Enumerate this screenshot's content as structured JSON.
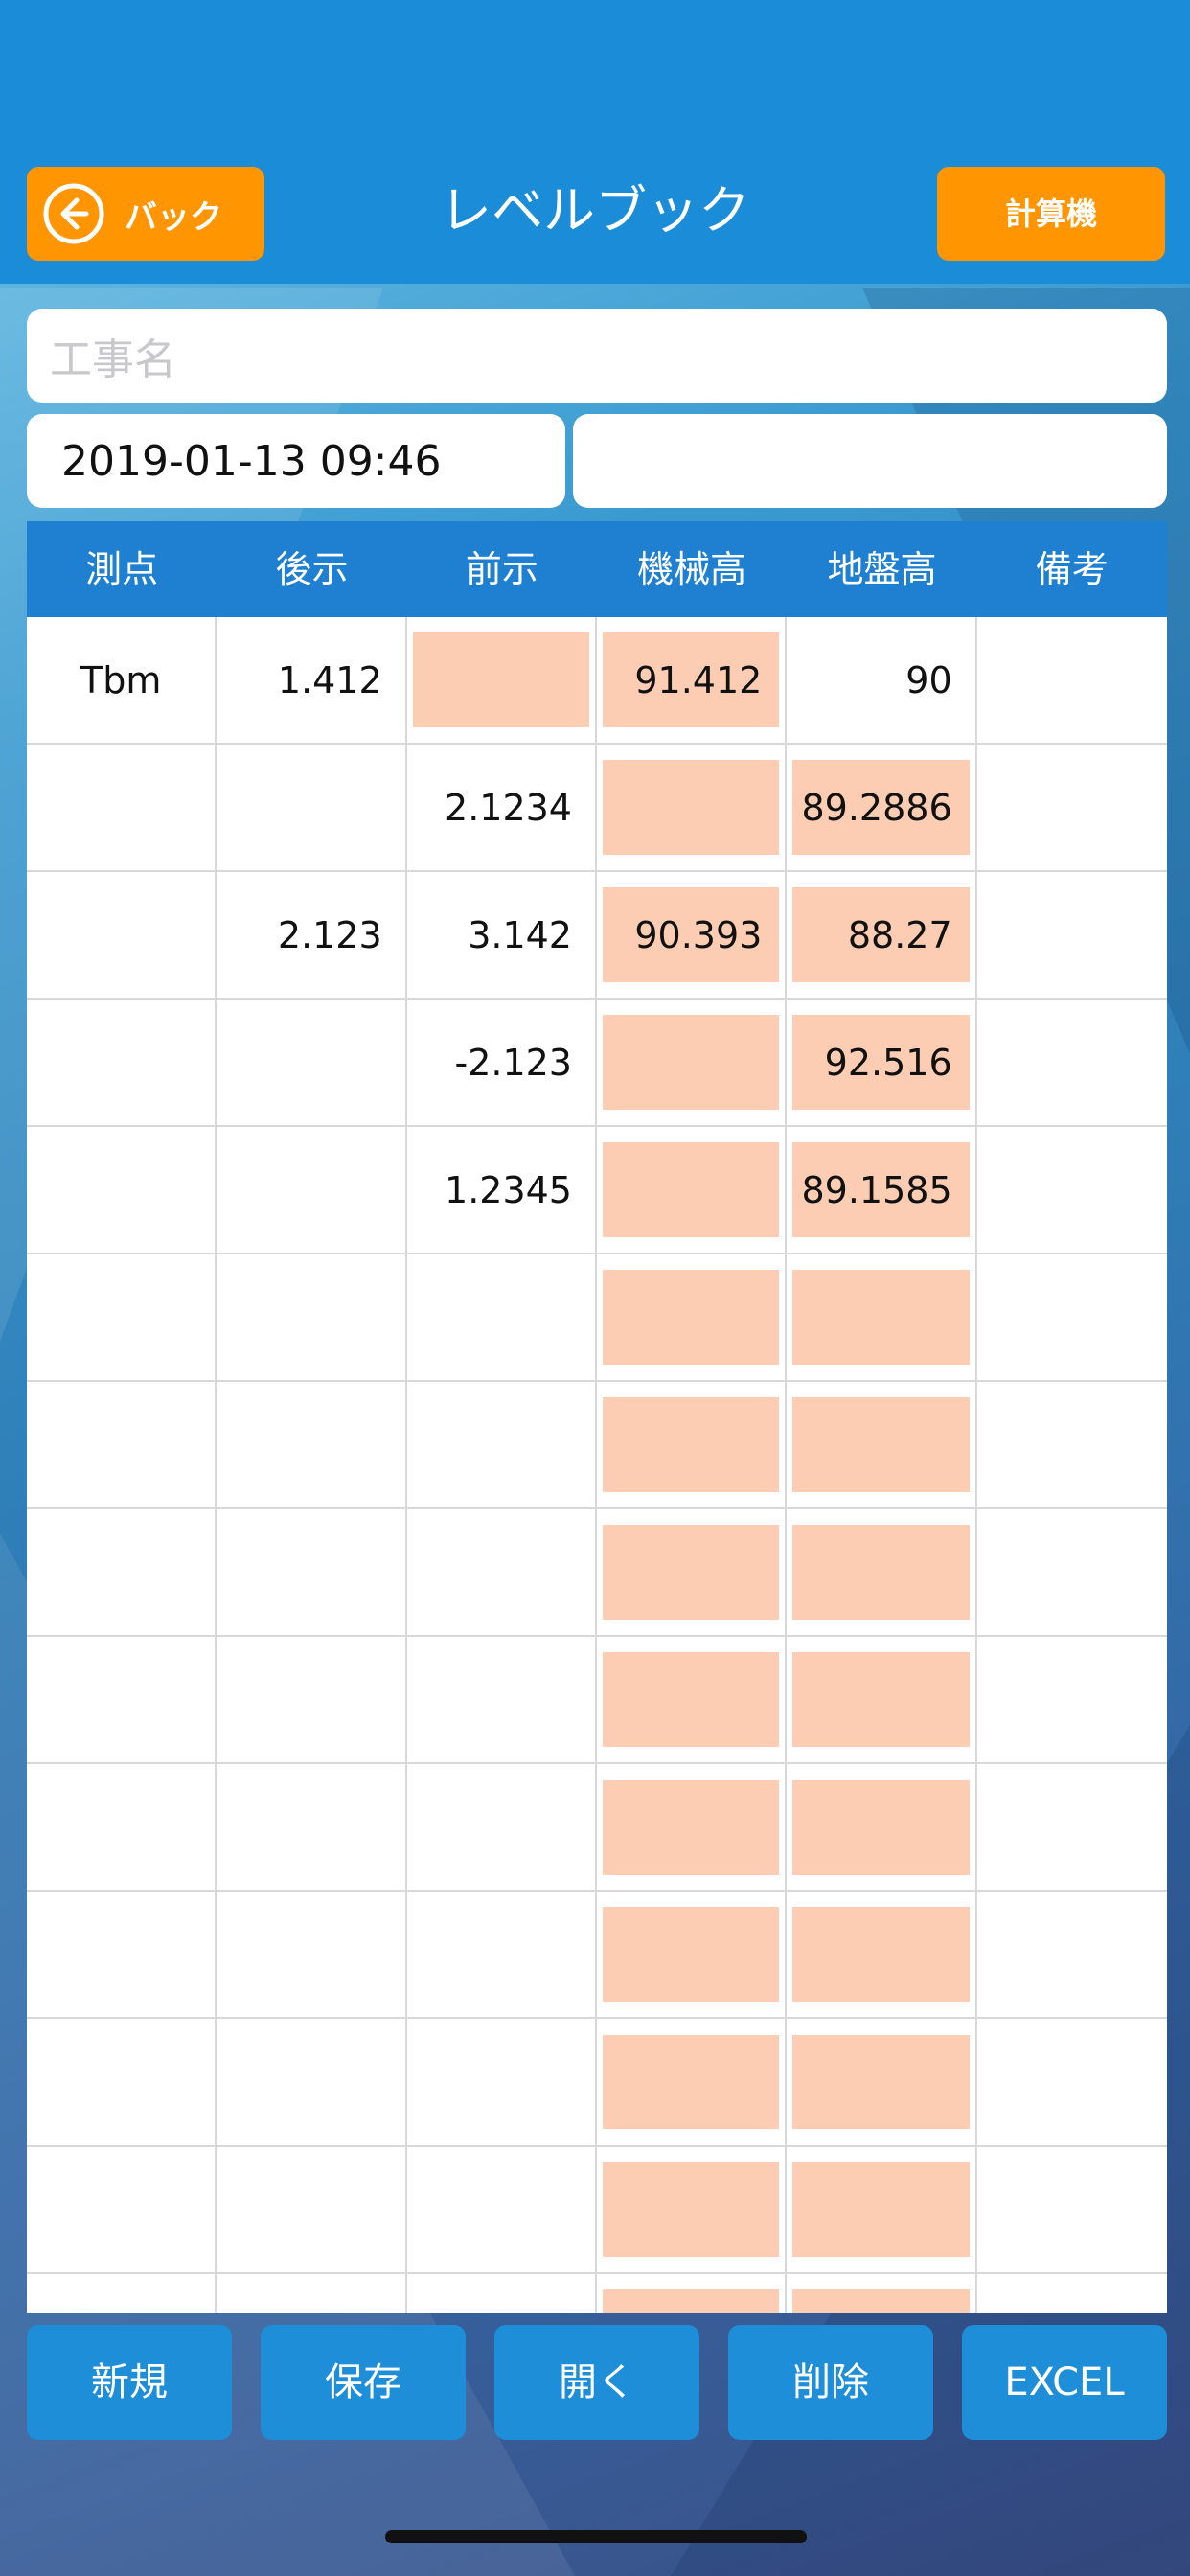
{
  "header": {
    "back_label": "バック",
    "title": "レベルブック",
    "calc_label": "計算機"
  },
  "form": {
    "project_placeholder": "工事名",
    "project_value": "",
    "datetime": "2019-01-13 09:46",
    "extra_value": ""
  },
  "table": {
    "headers": [
      "測点",
      "後示",
      "前示",
      "機械高",
      "地盤高",
      "備考"
    ],
    "rows": [
      [
        "Tbm",
        "1.412",
        "",
        "91.412",
        "90",
        ""
      ],
      [
        "",
        "",
        "2.1234",
        "",
        "89.2886",
        ""
      ],
      [
        "",
        "2.123",
        "3.142",
        "90.393",
        "88.27",
        ""
      ],
      [
        "",
        "",
        "-2.123",
        "",
        "92.516",
        ""
      ],
      [
        "",
        "",
        "1.2345",
        "",
        "89.1585",
        ""
      ],
      [
        "",
        "",
        "",
        "",
        "",
        ""
      ],
      [
        "",
        "",
        "",
        "",
        "",
        ""
      ],
      [
        "",
        "",
        "",
        "",
        "",
        ""
      ],
      [
        "",
        "",
        "",
        "",
        "",
        ""
      ],
      [
        "",
        "",
        "",
        "",
        "",
        ""
      ],
      [
        "",
        "",
        "",
        "",
        "",
        ""
      ],
      [
        "",
        "",
        "",
        "",
        "",
        ""
      ],
      [
        "",
        "",
        "",
        "",
        "",
        ""
      ],
      [
        "",
        "",
        "",
        "",
        "",
        ""
      ]
    ],
    "highlight_color": "#fccdb3"
  },
  "toolbar": {
    "buttons": [
      "新規",
      "保存",
      "開く",
      "削除",
      "EXCEL"
    ]
  },
  "colors": {
    "header_bg": "#1a8cd8",
    "accent_orange": "#ff9500",
    "table_header_bg": "#1f7fd0",
    "button_blue": "#1f8ed9"
  }
}
